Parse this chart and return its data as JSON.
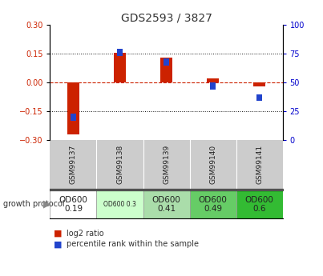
{
  "title": "GDS2593 / 3827",
  "samples": [
    "GSM99137",
    "GSM99138",
    "GSM99139",
    "GSM99140",
    "GSM99141"
  ],
  "log2_ratios": [
    -0.27,
    0.155,
    0.13,
    0.02,
    -0.018
  ],
  "percentile_ranks": [
    20,
    76,
    68,
    47,
    37
  ],
  "growth_protocol_labels": [
    "OD600\n0.19",
    "OD600 0.3",
    "OD600\n0.41",
    "OD600\n0.49",
    "OD600\n0.6"
  ],
  "growth_protocol_colors": [
    "#ffffff",
    "#ccffcc",
    "#aaddaa",
    "#66cc66",
    "#33bb33"
  ],
  "growth_protocol_text_small": [
    false,
    true,
    false,
    false,
    false
  ],
  "ylim_left": [
    -0.3,
    0.3
  ],
  "ylim_right": [
    0,
    100
  ],
  "yticks_left": [
    -0.3,
    -0.15,
    0,
    0.15,
    0.3
  ],
  "yticks_right": [
    0,
    25,
    50,
    75,
    100
  ],
  "bar_color_red": "#cc2200",
  "bar_color_blue": "#2244cc",
  "dotted_line_color": "#111111",
  "zero_line_color": "#cc2200",
  "bg_color": "#ffffff",
  "plot_bg_color": "#ffffff",
  "title_color": "#333333",
  "tick_label_color_left": "#cc2200",
  "tick_label_color_right": "#0000cc",
  "bar_width": 0.25,
  "blue_bar_width": 0.12,
  "blue_bar_height": 0.018,
  "legend_red_label": "log2 ratio",
  "legend_blue_label": "percentile rank within the sample"
}
